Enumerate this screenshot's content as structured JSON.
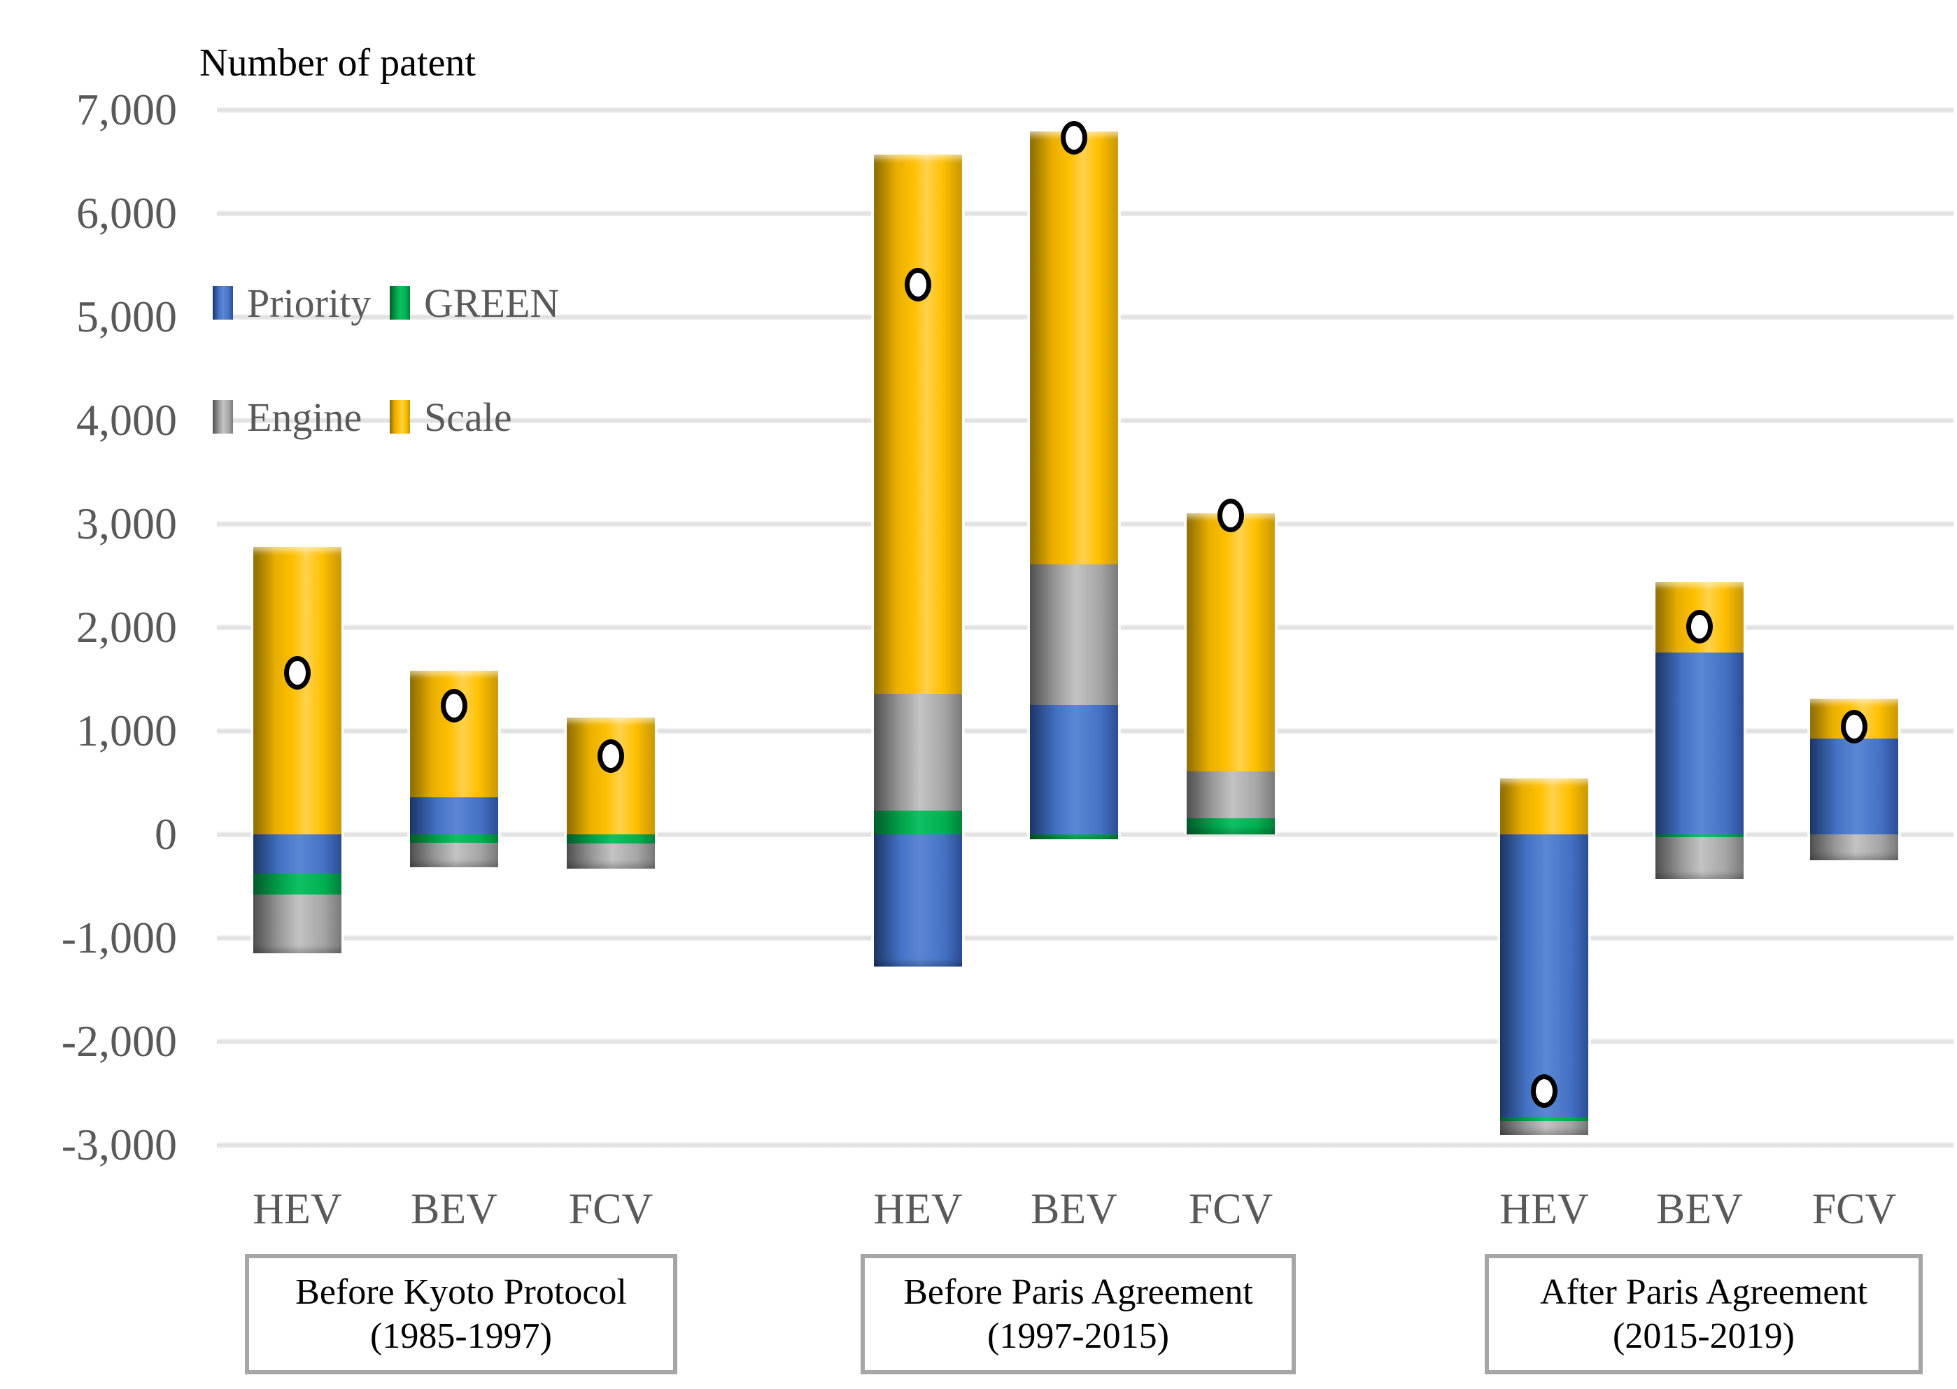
{
  "title": "Number of patent",
  "colors": {
    "priority": "#4472C4",
    "green": "#00B050",
    "engine": "#A5A5A5",
    "scale": "#FFC000",
    "axis_text": "#595959",
    "gridline": "#E2E2E2",
    "box_border": "#A6A6A6",
    "marker_fill": "#FFFFFF",
    "marker_border": "#000000"
  },
  "legend": [
    {
      "key": "priority",
      "label": "Priority"
    },
    {
      "key": "green",
      "label": "GREEN"
    },
    {
      "key": "engine",
      "label": "Engine"
    },
    {
      "key": "scale",
      "label": "Scale"
    }
  ],
  "chart_data": {
    "type": "bar",
    "stacked": true,
    "title": "Number of patent",
    "xlabel": "",
    "ylabel": "Number of patent",
    "ylim": [
      -3000,
      7000
    ],
    "ytick_step": 1000,
    "ytick_labels": [
      "7,000",
      "6,000",
      "5,000",
      "4,000",
      "3,000",
      "2,000",
      "1,000",
      "0",
      "-1,000",
      "-2,000",
      "-3,000"
    ],
    "grid": true,
    "legend_position": "inside-top-left",
    "legend_rows": [
      [
        "Priority",
        "GREEN"
      ],
      [
        "Engine",
        "Scale"
      ]
    ],
    "marker_glyph": "white-circle",
    "series_order": [
      "Priority",
      "GREEN",
      "Engine",
      "Scale"
    ],
    "groups": [
      {
        "label": "Before Kyoto Protocol",
        "sublabel": "(1985-1997)",
        "bars": [
          {
            "category": "HEV",
            "values": {
              "Priority": -380,
              "GREEN": -200,
              "Engine": -570,
              "Scale": 2780
            },
            "marker": 1560
          },
          {
            "category": "BEV",
            "values": {
              "Priority": 360,
              "GREEN": -80,
              "Engine": -240,
              "Scale": 1220
            },
            "marker": 1240
          },
          {
            "category": "FCV",
            "values": {
              "Priority": 0,
              "GREEN": -90,
              "Engine": -240,
              "Scale": 1130
            },
            "marker": 760
          }
        ]
      },
      {
        "label": "Before Paris Agreement",
        "sublabel": "(1997-2015)",
        "bars": [
          {
            "category": "HEV",
            "values": {
              "Priority": -1280,
              "GREEN": 230,
              "Engine": 1130,
              "Scale": 5210
            },
            "marker": 5310
          },
          {
            "category": "BEV",
            "values": {
              "Priority": 1250,
              "GREEN": -50,
              "Engine": 1360,
              "Scale": 4180
            },
            "marker": 6730
          },
          {
            "category": "FCV",
            "values": {
              "Priority": 0,
              "GREEN": 155,
              "Engine": 455,
              "Scale": 2490
            },
            "marker": 3080
          }
        ]
      },
      {
        "label": "After Paris Agreement",
        "sublabel": "(2015-2019)",
        "bars": [
          {
            "category": "HEV",
            "values": {
              "Priority": -2730,
              "GREEN": -40,
              "Engine": -135,
              "Scale": 540
            },
            "marker": -2480
          },
          {
            "category": "BEV",
            "values": {
              "Priority": 1760,
              "GREEN": -30,
              "Engine": -400,
              "Scale": 680
            },
            "marker": 2010
          },
          {
            "category": "FCV",
            "values": {
              "Priority": 925,
              "GREEN": 0,
              "Engine": -250,
              "Scale": 385
            },
            "marker": 1040
          }
        ]
      }
    ]
  }
}
